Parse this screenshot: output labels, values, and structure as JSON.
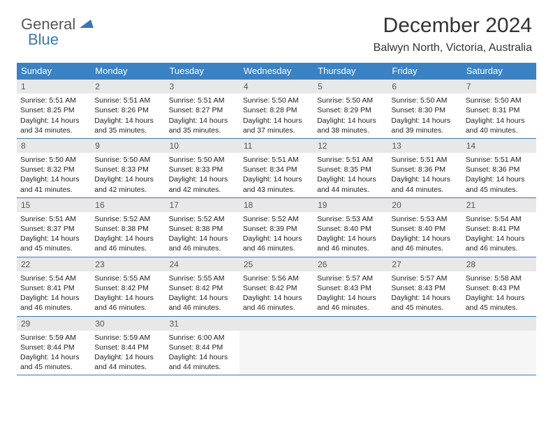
{
  "logo": {
    "part1": "General",
    "part2": "Blue"
  },
  "title": "December 2024",
  "location": "Balwyn North, Victoria, Australia",
  "colors": {
    "header_bg": "#3a82c4",
    "header_text": "#ffffff",
    "daynum_bg": "#e8e8e8",
    "border": "#3a78b5",
    "logo_blue": "#3a78b5",
    "logo_gray": "#555555",
    "body_text": "#222222",
    "page_bg": "#ffffff"
  },
  "weekdays": [
    "Sunday",
    "Monday",
    "Tuesday",
    "Wednesday",
    "Thursday",
    "Friday",
    "Saturday"
  ],
  "weeks": [
    [
      {
        "n": "1",
        "sr": "5:51 AM",
        "ss": "8:25 PM",
        "dl": "14 hours and 34 minutes."
      },
      {
        "n": "2",
        "sr": "5:51 AM",
        "ss": "8:26 PM",
        "dl": "14 hours and 35 minutes."
      },
      {
        "n": "3",
        "sr": "5:51 AM",
        "ss": "8:27 PM",
        "dl": "14 hours and 35 minutes."
      },
      {
        "n": "4",
        "sr": "5:50 AM",
        "ss": "8:28 PM",
        "dl": "14 hours and 37 minutes."
      },
      {
        "n": "5",
        "sr": "5:50 AM",
        "ss": "8:29 PM",
        "dl": "14 hours and 38 minutes."
      },
      {
        "n": "6",
        "sr": "5:50 AM",
        "ss": "8:30 PM",
        "dl": "14 hours and 39 minutes."
      },
      {
        "n": "7",
        "sr": "5:50 AM",
        "ss": "8:31 PM",
        "dl": "14 hours and 40 minutes."
      }
    ],
    [
      {
        "n": "8",
        "sr": "5:50 AM",
        "ss": "8:32 PM",
        "dl": "14 hours and 41 minutes."
      },
      {
        "n": "9",
        "sr": "5:50 AM",
        "ss": "8:33 PM",
        "dl": "14 hours and 42 minutes."
      },
      {
        "n": "10",
        "sr": "5:50 AM",
        "ss": "8:33 PM",
        "dl": "14 hours and 42 minutes."
      },
      {
        "n": "11",
        "sr": "5:51 AM",
        "ss": "8:34 PM",
        "dl": "14 hours and 43 minutes."
      },
      {
        "n": "12",
        "sr": "5:51 AM",
        "ss": "8:35 PM",
        "dl": "14 hours and 44 minutes."
      },
      {
        "n": "13",
        "sr": "5:51 AM",
        "ss": "8:36 PM",
        "dl": "14 hours and 44 minutes."
      },
      {
        "n": "14",
        "sr": "5:51 AM",
        "ss": "8:36 PM",
        "dl": "14 hours and 45 minutes."
      }
    ],
    [
      {
        "n": "15",
        "sr": "5:51 AM",
        "ss": "8:37 PM",
        "dl": "14 hours and 45 minutes."
      },
      {
        "n": "16",
        "sr": "5:52 AM",
        "ss": "8:38 PM",
        "dl": "14 hours and 46 minutes."
      },
      {
        "n": "17",
        "sr": "5:52 AM",
        "ss": "8:38 PM",
        "dl": "14 hours and 46 minutes."
      },
      {
        "n": "18",
        "sr": "5:52 AM",
        "ss": "8:39 PM",
        "dl": "14 hours and 46 minutes."
      },
      {
        "n": "19",
        "sr": "5:53 AM",
        "ss": "8:40 PM",
        "dl": "14 hours and 46 minutes."
      },
      {
        "n": "20",
        "sr": "5:53 AM",
        "ss": "8:40 PM",
        "dl": "14 hours and 46 minutes."
      },
      {
        "n": "21",
        "sr": "5:54 AM",
        "ss": "8:41 PM",
        "dl": "14 hours and 46 minutes."
      }
    ],
    [
      {
        "n": "22",
        "sr": "5:54 AM",
        "ss": "8:41 PM",
        "dl": "14 hours and 46 minutes."
      },
      {
        "n": "23",
        "sr": "5:55 AM",
        "ss": "8:42 PM",
        "dl": "14 hours and 46 minutes."
      },
      {
        "n": "24",
        "sr": "5:55 AM",
        "ss": "8:42 PM",
        "dl": "14 hours and 46 minutes."
      },
      {
        "n": "25",
        "sr": "5:56 AM",
        "ss": "8:42 PM",
        "dl": "14 hours and 46 minutes."
      },
      {
        "n": "26",
        "sr": "5:57 AM",
        "ss": "8:43 PM",
        "dl": "14 hours and 46 minutes."
      },
      {
        "n": "27",
        "sr": "5:57 AM",
        "ss": "8:43 PM",
        "dl": "14 hours and 45 minutes."
      },
      {
        "n": "28",
        "sr": "5:58 AM",
        "ss": "8:43 PM",
        "dl": "14 hours and 45 minutes."
      }
    ],
    [
      {
        "n": "29",
        "sr": "5:59 AM",
        "ss": "8:44 PM",
        "dl": "14 hours and 45 minutes."
      },
      {
        "n": "30",
        "sr": "5:59 AM",
        "ss": "8:44 PM",
        "dl": "14 hours and 44 minutes."
      },
      {
        "n": "31",
        "sr": "6:00 AM",
        "ss": "8:44 PM",
        "dl": "14 hours and 44 minutes."
      },
      null,
      null,
      null,
      null
    ]
  ],
  "labels": {
    "sunrise": "Sunrise:",
    "sunset": "Sunset:",
    "daylight": "Daylight:"
  }
}
